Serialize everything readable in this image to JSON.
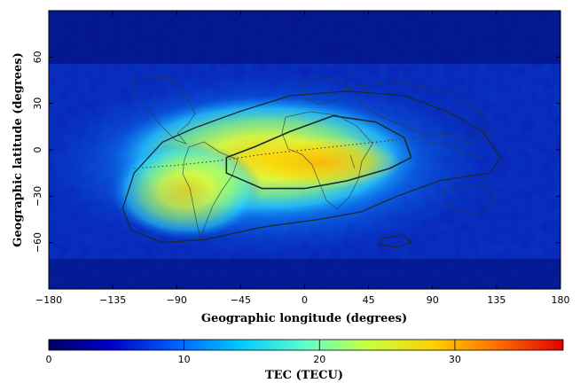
{
  "figure": {
    "xlabel": "Geographic longitude (degrees)",
    "ylabel": "Geographic latitude (degrees)",
    "colorbar_label": "TEC (TECU)"
  },
  "chart_data": {
    "type": "heatmap",
    "title": "",
    "xlabel": "Geographic longitude (degrees)",
    "ylabel": "Geographic latitude (degrees)",
    "xlim": [
      -180,
      180
    ],
    "ylim": [
      -90,
      90
    ],
    "x_ticks": [
      -180,
      -135,
      -90,
      -45,
      0,
      45,
      90,
      135,
      180
    ],
    "x_tick_labels": [
      "−180",
      "−135",
      "−90",
      "−45",
      "0",
      "45",
      "90",
      "135",
      "180"
    ],
    "y_ticks": [
      60,
      30,
      0,
      -30,
      -60
    ],
    "y_tick_labels": [
      "60",
      "30",
      "0",
      "−30",
      "−60"
    ],
    "colorbar": {
      "label": "TEC (TECU)",
      "range": [
        0,
        38
      ],
      "ticks": [
        0,
        10,
        20,
        30
      ],
      "tick_labels": [
        "0",
        "10",
        "20",
        "30"
      ],
      "colors": [
        "#000060",
        "#0000c8",
        "#0060ff",
        "#00c8ff",
        "#60ffc8",
        "#c8ff40",
        "#ffd000",
        "#ff7000",
        "#e00000"
      ]
    },
    "tec_peak_tecu": 26,
    "tec_peak_lon": 10,
    "tec_peak_lat": -8,
    "contour_outer": [
      [
        -128,
        -38
      ],
      [
        -122,
        -52
      ],
      [
        -100,
        -60
      ],
      [
        -70,
        -58
      ],
      [
        -30,
        -50
      ],
      [
        10,
        -45
      ],
      [
        40,
        -40
      ],
      [
        65,
        -30
      ],
      [
        95,
        -20
      ],
      [
        130,
        -15
      ],
      [
        138,
        -5
      ],
      [
        125,
        12
      ],
      [
        100,
        25
      ],
      [
        70,
        35
      ],
      [
        30,
        38
      ],
      [
        -10,
        35
      ],
      [
        -45,
        25
      ],
      [
        -78,
        14
      ],
      [
        -100,
        5
      ],
      [
        -120,
        -15
      ]
    ],
    "contour_inner": [
      [
        -55,
        -15
      ],
      [
        -30,
        -25
      ],
      [
        0,
        -25
      ],
      [
        30,
        -20
      ],
      [
        60,
        -12
      ],
      [
        75,
        -5
      ],
      [
        70,
        8
      ],
      [
        50,
        18
      ],
      [
        20,
        22
      ],
      [
        -10,
        12
      ],
      [
        -35,
        2
      ],
      [
        -55,
        -5
      ]
    ],
    "contour_south_patch": [
      [
        55,
        -57
      ],
      [
        70,
        -55
      ],
      [
        75,
        -60
      ],
      [
        65,
        -63
      ],
      [
        52,
        -61
      ]
    ],
    "equator_line": [
      [
        -120,
        -12
      ],
      [
        -90,
        -10
      ],
      [
        -60,
        -7
      ],
      [
        -30,
        -3
      ],
      [
        0,
        0
      ],
      [
        30,
        3
      ],
      [
        60,
        6
      ],
      [
        90,
        9
      ],
      [
        120,
        11
      ],
      [
        135,
        12
      ]
    ]
  }
}
